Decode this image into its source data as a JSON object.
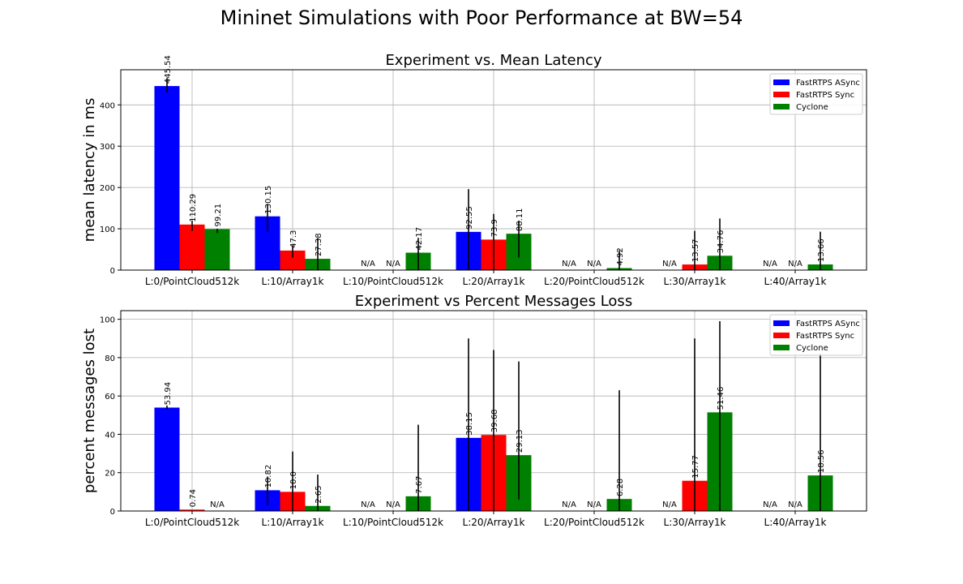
{
  "suptitle": "Mininet Simulations with Poor Performance at BW=54",
  "chart_data": [
    {
      "type": "bar",
      "title": "Experiment vs. Mean Latency",
      "xlabel": "",
      "ylabel": "mean latency in ms",
      "ylim": [
        0,
        485
      ],
      "yticks": [
        0,
        100,
        200,
        300,
        400
      ],
      "grid": true,
      "legend": "top-right",
      "categories": [
        "L:0/PointCloud512k",
        "L:10/Array1k",
        "L:10/PointCloud512k",
        "L:20/Array1k",
        "L:20/PointCloud512k",
        "L:30/Array1k",
        "L:40/Array1k"
      ],
      "series": [
        {
          "name": "FastRTPS ASync",
          "color": "#0000ff",
          "values": [
            445.54,
            130.15,
            null,
            92.55,
            null,
            null,
            null
          ],
          "labels": [
            "445.54",
            "130.15",
            "N/A",
            "92.55",
            "N/A",
            "N/A",
            "N/A"
          ],
          "err": [
            [
              430,
              465
            ],
            [
              92,
              160
            ],
            null,
            [
              0,
              196
            ],
            null,
            null,
            null
          ]
        },
        {
          "name": "FastRTPS Sync",
          "color": "#ff0000",
          "values": [
            110.29,
            47.3,
            null,
            73.9,
            null,
            13.57,
            null
          ],
          "labels": [
            "110.29",
            "47.3",
            "N/A",
            "73.9",
            "N/A",
            "13.57",
            "N/A"
          ],
          "err": [
            [
              95,
              120
            ],
            [
              30,
              60
            ],
            null,
            [
              0,
              136
            ],
            null,
            [
              0,
              95
            ],
            null
          ]
        },
        {
          "name": "Cyclone",
          "color": "#008000",
          "values": [
            99.21,
            27.38,
            42.17,
            88.11,
            4.92,
            34.76,
            13.66
          ],
          "labels": [
            "99.21",
            "27.38",
            "42.17",
            "88.11",
            "4.92",
            "34.76",
            "13.66"
          ],
          "err": [
            [
              90,
              100
            ],
            [
              0,
              78
            ],
            [
              0,
              78
            ],
            [
              30,
              120
            ],
            [
              0,
              48
            ],
            [
              0,
              125
            ],
            [
              0,
              93
            ]
          ]
        }
      ]
    },
    {
      "type": "bar",
      "title": "Experiment vs Percent Messages Loss",
      "xlabel": "",
      "ylabel": "percent messages lost",
      "ylim": [
        0,
        104.5
      ],
      "yticks": [
        0,
        20,
        40,
        60,
        80,
        100
      ],
      "grid": true,
      "legend": "top-right",
      "categories": [
        "L:0/PointCloud512k",
        "L:10/Array1k",
        "L:10/PointCloud512k",
        "L:20/Array1k",
        "L:20/PointCloud512k",
        "L:30/Array1k",
        "L:40/Array1k"
      ],
      "series": [
        {
          "name": "FastRTPS ASync",
          "color": "#0000ff",
          "values": [
            53.94,
            10.82,
            null,
            38.15,
            null,
            null,
            null
          ],
          "labels": [
            "53.94",
            "10.82",
            "N/A",
            "38.15",
            "N/A",
            "N/A",
            "N/A"
          ],
          "err": [
            [
              53,
              55
            ],
            [
              3,
              18
            ],
            null,
            [
              0,
              90
            ],
            null,
            null,
            null
          ]
        },
        {
          "name": "FastRTPS Sync",
          "color": "#ff0000",
          "values": [
            0.74,
            10.0,
            null,
            39.68,
            null,
            15.77,
            null
          ],
          "labels": [
            "0.74",
            "10.0",
            "N/A",
            "39.68",
            "N/A",
            "15.77",
            "N/A"
          ],
          "err": [
            null,
            [
              0,
              31
            ],
            null,
            [
              0,
              84
            ],
            null,
            [
              0,
              90
            ],
            null
          ]
        },
        {
          "name": "Cyclone",
          "color": "#008000",
          "values": [
            null,
            2.65,
            7.67,
            29.13,
            6.28,
            51.46,
            18.56
          ],
          "labels": [
            "N/A",
            "2.65",
            "7.67",
            "29.13",
            "6.28",
            "51.46",
            "18.56"
          ],
          "err": [
            null,
            [
              0,
              19
            ],
            [
              0,
              45
            ],
            [
              6,
              78
            ],
            [
              0,
              63
            ],
            [
              0,
              99
            ],
            [
              0,
              82
            ]
          ]
        }
      ]
    }
  ]
}
